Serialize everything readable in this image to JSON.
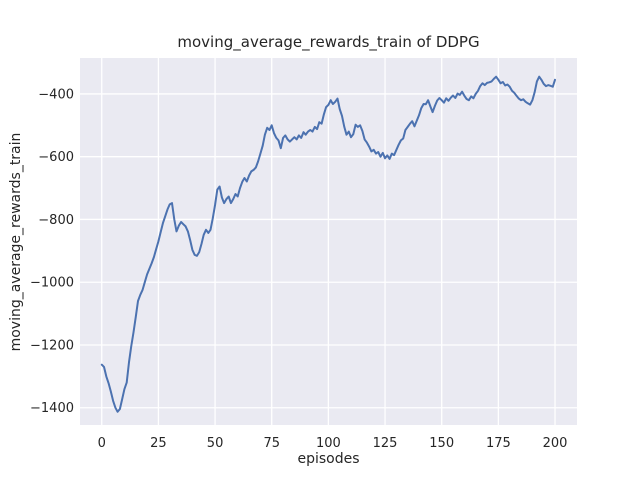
{
  "chart_data": {
    "type": "line",
    "title": "moving_average_rewards_train of DDPG",
    "xlabel": "episodes",
    "ylabel": "moving_average_rewards_train",
    "xlim": [
      -9.6,
      209.7
    ],
    "ylim": [
      -1455,
      -285.5
    ],
    "grid": true,
    "legend": "none",
    "x_ticks": [
      0,
      25,
      50,
      75,
      100,
      125,
      150,
      175,
      200
    ],
    "x_tick_labels": [
      "0",
      "25",
      "50",
      "75",
      "100",
      "125",
      "150",
      "175",
      "200"
    ],
    "y_ticks": [
      -400,
      -600,
      -800,
      -1000,
      -1200,
      -1400
    ],
    "y_tick_labels": [
      "−400",
      "−600",
      "−800",
      "−1000",
      "−1200",
      "−1400"
    ],
    "colors": {
      "line": "#4c72b0",
      "plot_background": "#eaeaf2",
      "grid": "#ffffff",
      "text": "#262626",
      "figure_background": "#ffffff"
    },
    "series": [
      {
        "name": "moving_average_rewards_train",
        "x_start": 0,
        "x_step": 1,
        "values": [
          -1263,
          -1270,
          -1300,
          -1322,
          -1348,
          -1378,
          -1400,
          -1413,
          -1404,
          -1372,
          -1341,
          -1320,
          -1255,
          -1205,
          -1160,
          -1110,
          -1060,
          -1040,
          -1025,
          -1000,
          -975,
          -958,
          -940,
          -920,
          -895,
          -870,
          -840,
          -812,
          -790,
          -768,
          -752,
          -748,
          -800,
          -838,
          -820,
          -808,
          -815,
          -822,
          -838,
          -865,
          -897,
          -913,
          -916,
          -904,
          -878,
          -849,
          -833,
          -843,
          -833,
          -796,
          -753,
          -705,
          -695,
          -730,
          -748,
          -735,
          -727,
          -748,
          -735,
          -719,
          -727,
          -700,
          -680,
          -668,
          -679,
          -660,
          -647,
          -642,
          -634,
          -615,
          -590,
          -565,
          -530,
          -508,
          -515,
          -500,
          -525,
          -540,
          -548,
          -573,
          -540,
          -532,
          -545,
          -552,
          -545,
          -538,
          -545,
          -532,
          -540,
          -522,
          -530,
          -520,
          -515,
          -520,
          -505,
          -512,
          -490,
          -495,
          -465,
          -442,
          -435,
          -420,
          -432,
          -425,
          -415,
          -448,
          -470,
          -505,
          -530,
          -520,
          -538,
          -528,
          -498,
          -505,
          -500,
          -518,
          -545,
          -555,
          -568,
          -583,
          -578,
          -590,
          -585,
          -600,
          -588,
          -605,
          -596,
          -607,
          -590,
          -595,
          -578,
          -562,
          -548,
          -542,
          -515,
          -505,
          -495,
          -487,
          -503,
          -485,
          -468,
          -445,
          -432,
          -433,
          -420,
          -440,
          -458,
          -438,
          -421,
          -413,
          -420,
          -428,
          -414,
          -422,
          -412,
          -405,
          -413,
          -399,
          -403,
          -393,
          -406,
          -416,
          -420,
          -408,
          -414,
          -400,
          -390,
          -375,
          -366,
          -372,
          -365,
          -363,
          -360,
          -352,
          -345,
          -355,
          -366,
          -362,
          -373,
          -370,
          -377,
          -390,
          -396,
          -406,
          -415,
          -420,
          -417,
          -425,
          -430,
          -434,
          -420,
          -395,
          -360,
          -345,
          -355,
          -368,
          -375,
          -372,
          -374,
          -377,
          -355
        ]
      }
    ]
  }
}
